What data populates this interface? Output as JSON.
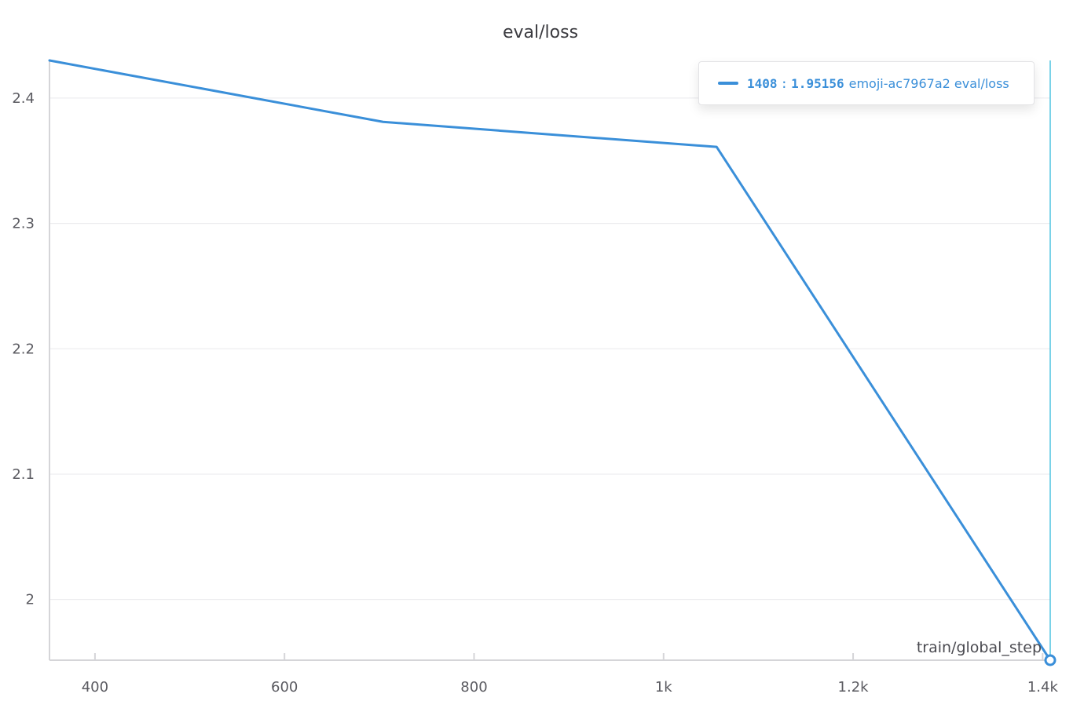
{
  "colors": {
    "series": "#3a8fd9",
    "crosshair": "#4fc3e0",
    "grid": "#e9e9ec",
    "axis": "#d5d5d8"
  },
  "tooltip": {
    "step": "1408",
    "separator": ":",
    "value": "1.95156",
    "run_label": "emoji-ac7967a2 eval/loss"
  },
  "chart_data": {
    "type": "line",
    "title": "eval/loss",
    "xlabel": "train/global_step",
    "ylabel": "",
    "xlim": [
      352,
      1408
    ],
    "ylim": [
      1.95156,
      2.43
    ],
    "x_ticks": [
      {
        "value": 400,
        "label": "400"
      },
      {
        "value": 600,
        "label": "600"
      },
      {
        "value": 800,
        "label": "800"
      },
      {
        "value": 1000,
        "label": "1k"
      },
      {
        "value": 1200,
        "label": "1.2k"
      },
      {
        "value": 1400,
        "label": "1.4k"
      }
    ],
    "y_ticks": [
      {
        "value": 2.0,
        "label": "2"
      },
      {
        "value": 2.1,
        "label": "2.1"
      },
      {
        "value": 2.2,
        "label": "2.2"
      },
      {
        "value": 2.3,
        "label": "2.3"
      },
      {
        "value": 2.4,
        "label": "2.4"
      }
    ],
    "grid": true,
    "series": [
      {
        "name": "emoji-ac7967a2 eval/loss",
        "x": [
          352,
          704,
          1056,
          1408
        ],
        "y": [
          2.43,
          2.381,
          2.361,
          1.95156
        ]
      }
    ],
    "hover": {
      "x": 1408,
      "y": 1.95156
    }
  }
}
